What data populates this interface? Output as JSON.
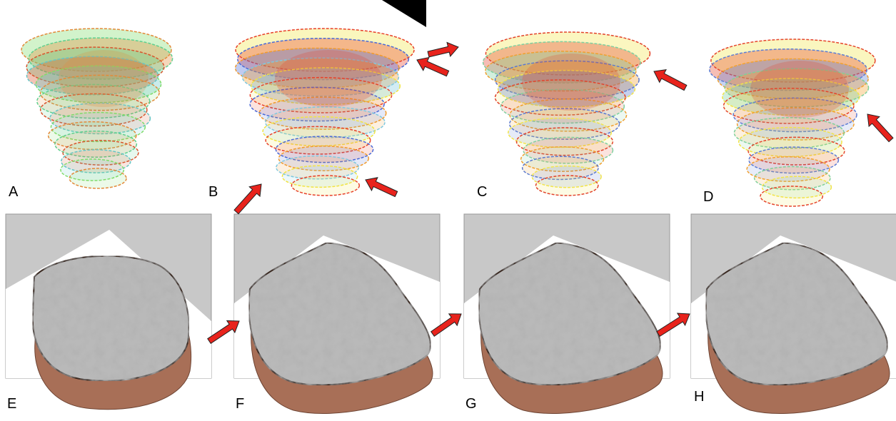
{
  "panels": {
    "top": [
      "A",
      "B",
      "C",
      "D"
    ],
    "bottom": [
      "E",
      "F",
      "G",
      "H"
    ]
  }
}
